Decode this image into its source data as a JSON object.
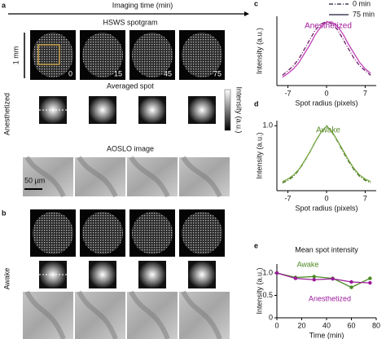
{
  "figure": {
    "panel_a": "a",
    "time_axis": "Imaging time (min)",
    "spotgram_title": "HSWS spotgram",
    "scale_1mm": "1 mm",
    "times": [
      0,
      15,
      45,
      75
    ],
    "avg_title": "Averaged spot",
    "colorbar_label": "Intensity (a.u.)",
    "condition_a": "Anesthetized",
    "condition_a_color": "#a0189a",
    "aoslo_title": "AOSLO image",
    "scale_50um": "50 µm",
    "panel_b": "b",
    "condition_b": "Awake",
    "condition_b_color": "#5a8a2a"
  },
  "chart_data": [
    {
      "type": "line",
      "panel_label": "c",
      "annotation": "Anesthetized",
      "annotation_color": "#a0189a",
      "xlabel": "Spot radius (pixels)",
      "ylabel": "Intensity (a.u.)",
      "legend_line_color": "#1a1a3a",
      "x": [
        -8,
        -7,
        -6,
        -5,
        -4,
        -3,
        -2,
        -1,
        0,
        1,
        2,
        3,
        4,
        5,
        6,
        7,
        8
      ],
      "xlim": [
        -9,
        9
      ],
      "xticks": [
        -7,
        0,
        7
      ],
      "ylim": [
        0,
        1.08
      ],
      "series": [
        {
          "name": "0 min",
          "color": "#6a1a66",
          "dash": true,
          "values": [
            0.16,
            0.23,
            0.31,
            0.42,
            0.57,
            0.72,
            0.87,
            0.96,
            1.0,
            0.96,
            0.87,
            0.72,
            0.57,
            0.42,
            0.31,
            0.23,
            0.16
          ]
        },
        {
          "name": "75 min",
          "color": "#c040b8",
          "dash": false,
          "values": [
            0.13,
            0.19,
            0.26,
            0.36,
            0.5,
            0.64,
            0.8,
            0.92,
            0.99,
            0.99,
            0.92,
            0.8,
            0.64,
            0.5,
            0.36,
            0.26,
            0.19
          ]
        }
      ]
    },
    {
      "type": "line",
      "panel_label": "d",
      "annotation": "Awake",
      "annotation_color": "#5a8a2a",
      "xlabel": "Spot radius (pixels)",
      "ylabel": "Intensity (a.u.)",
      "x": [
        -8,
        -7,
        -6,
        -5,
        -4,
        -3,
        -2,
        -1,
        0,
        1,
        2,
        3,
        4,
        5,
        6,
        7,
        8
      ],
      "xlim": [
        -9,
        9
      ],
      "xticks": [
        -7,
        0,
        7
      ],
      "ylim": [
        0,
        1.08
      ],
      "yticks": [
        {
          "value": 1,
          "label": "1.0"
        }
      ],
      "series": [
        {
          "color": "#3f6a1a",
          "dash": true,
          "values": [
            0.12,
            0.16,
            0.22,
            0.32,
            0.45,
            0.6,
            0.76,
            0.9,
            1.0,
            0.9,
            0.76,
            0.6,
            0.45,
            0.32,
            0.22,
            0.16,
            0.12
          ]
        },
        {
          "color": "#7aaa45",
          "dash": false,
          "values": [
            0.14,
            0.18,
            0.24,
            0.33,
            0.46,
            0.6,
            0.76,
            0.9,
            0.99,
            0.91,
            0.77,
            0.62,
            0.47,
            0.34,
            0.24,
            0.18,
            0.14
          ]
        }
      ]
    },
    {
      "type": "line",
      "panel_label": "e",
      "title": "Mean spot intensity",
      "markers": true,
      "xlabel": "Time (min)",
      "ylabel": "Intensity (a.u.)",
      "x": [
        0,
        15,
        30,
        45,
        60,
        75
      ],
      "xlim": [
        0,
        80
      ],
      "xticks": [
        0,
        20,
        40,
        60,
        80
      ],
      "ylim": [
        0,
        1.2
      ],
      "yticks": [
        0,
        0.5,
        {
          "value": 1,
          "label": "1.0"
        }
      ],
      "series": [
        {
          "name": "Awake",
          "color": "#4a8a22",
          "values": [
            1.0,
            0.9,
            0.92,
            0.88,
            0.68,
            0.88
          ]
        },
        {
          "name": "Anesthetized",
          "color": "#9a1a9a",
          "values": [
            1.0,
            0.88,
            0.85,
            0.87,
            0.8,
            0.78
          ]
        }
      ]
    }
  ]
}
